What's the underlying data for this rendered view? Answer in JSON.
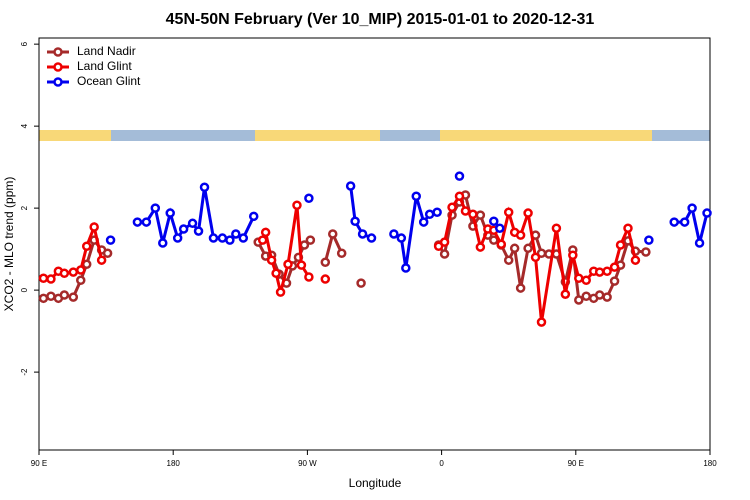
{
  "chart_data": {
    "type": "line",
    "title": "45N-50N February (Ver 10_MIP)   2015-01-01 to 2020-12-31",
    "xlabel": "Longitude",
    "ylabel": "XCO2 - MLO trend (ppm)",
    "xlim": [
      90,
      540
    ],
    "ylim": [
      -3.9,
      6.15
    ],
    "xticks": [
      {
        "value": 90,
        "label": "90 E"
      },
      {
        "value": 180,
        "label": "180"
      },
      {
        "value": 270,
        "label": "90 W"
      },
      {
        "value": 360,
        "label": "0"
      },
      {
        "value": 450,
        "label": "90 E"
      },
      {
        "value": 540,
        "label": "180"
      }
    ],
    "yticks": [
      -2,
      0,
      2,
      4,
      6
    ],
    "legend": "top-left",
    "series": [
      {
        "name": "Land Nadir",
        "color": "#a52a2a",
        "x": [
          93,
          98,
          103,
          107,
          113,
          118,
          122,
          127,
          132,
          136,
          null,
          237,
          242,
          246,
          251,
          256,
          260,
          264,
          268,
          272,
          null,
          282,
          287,
          293,
          null,
          306,
          null,
          358,
          362,
          367,
          372,
          376,
          381,
          386,
          391,
          395,
          400,
          405,
          409,
          413,
          418,
          423,
          427,
          432,
          437,
          443,
          448,
          452,
          457,
          462,
          466,
          471,
          476,
          480,
          485,
          490,
          497
        ],
        "values": [
          -0.2,
          -0.15,
          -0.2,
          -0.12,
          -0.17,
          0.24,
          0.63,
          1.22,
          0.98,
          0.9,
          null,
          1.17,
          0.83,
          0.85,
          0.39,
          0.17,
          0.59,
          0.8,
          1.1,
          1.22,
          null,
          0.68,
          1.37,
          0.9,
          null,
          0.17,
          null,
          1.1,
          0.88,
          1.83,
          2.15,
          2.32,
          1.56,
          1.83,
          1.34,
          1.22,
          1.1,
          0.73,
          1.02,
          0.05,
          1.02,
          1.34,
          0.9,
          0.88,
          0.88,
          0.2,
          0.98,
          -0.24,
          -0.15,
          -0.2,
          -0.12,
          -0.17,
          0.22,
          0.61,
          1.2,
          0.95,
          0.93
        ]
      },
      {
        "name": "Land Glint",
        "color": "#ee0000",
        "x": [
          93,
          98,
          103,
          107,
          113,
          118,
          122,
          127,
          132,
          null,
          240,
          242,
          246,
          249,
          252,
          257,
          263,
          266,
          271,
          null,
          282,
          null,
          358,
          362,
          367,
          372,
          376,
          381,
          386,
          391,
          395,
          400,
          405,
          409,
          413,
          418,
          423,
          427,
          437,
          443,
          448,
          452,
          457,
          462,
          466,
          471,
          476,
          480,
          485,
          490
        ],
        "values": [
          0.29,
          0.27,
          0.46,
          0.41,
          0.44,
          0.49,
          1.07,
          1.54,
          0.73,
          null,
          1.22,
          1.41,
          0.73,
          0.41,
          -0.05,
          0.63,
          2.07,
          0.61,
          0.32,
          null,
          0.27,
          null,
          1.07,
          1.17,
          2.02,
          2.29,
          1.93,
          1.85,
          1.05,
          1.49,
          1.46,
          1.12,
          1.9,
          1.41,
          1.34,
          1.88,
          0.8,
          -0.78,
          1.51,
          -0.1,
          0.85,
          0.29,
          0.24,
          0.46,
          0.44,
          0.46,
          0.56,
          1.1,
          1.51,
          0.73
        ]
      },
      {
        "name": "Ocean Glint",
        "color": "#0000ee",
        "x": [
          138,
          null,
          156,
          162,
          168,
          173,
          178,
          183,
          187,
          193,
          197,
          201,
          207,
          213,
          218,
          222,
          227,
          234,
          null,
          271,
          null,
          299,
          302,
          307,
          313,
          null,
          328,
          333,
          336,
          343,
          348,
          352,
          357,
          null,
          372,
          null,
          395,
          399,
          null,
          499,
          null,
          516,
          523,
          528,
          533,
          538
        ],
        "values": [
          1.22,
          null,
          1.66,
          1.66,
          2.0,
          1.15,
          1.88,
          1.27,
          1.49,
          1.63,
          1.44,
          2.51,
          1.27,
          1.27,
          1.22,
          1.37,
          1.27,
          1.8,
          null,
          2.24,
          null,
          2.54,
          1.68,
          1.37,
          1.27,
          null,
          1.37,
          1.27,
          0.54,
          2.29,
          1.66,
          1.85,
          1.9,
          null,
          2.78,
          null,
          1.68,
          1.51,
          null,
          1.22,
          null,
          1.66,
          1.66,
          2.0,
          1.15,
          1.88
        ]
      }
    ]
  }
}
